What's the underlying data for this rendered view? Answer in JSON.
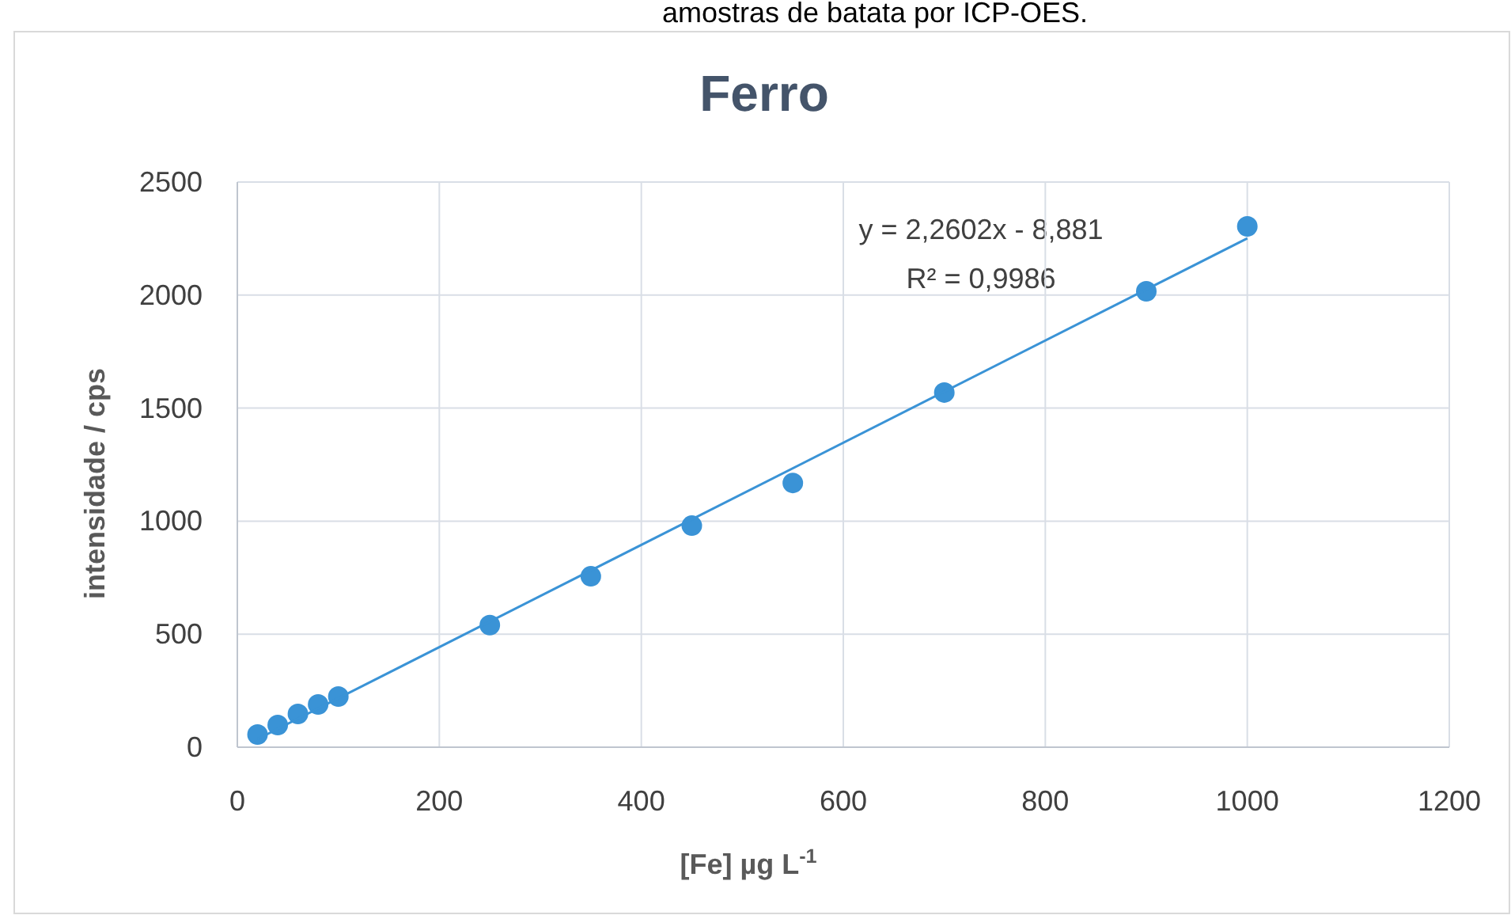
{
  "chart_data": {
    "type": "scatter",
    "title": "Ferro",
    "xlabel": "[Fe] µg L$^{-1}$",
    "ylabel": "intensidade / cps",
    "annotations": [
      "amostras de batata por ICP-OES.",
      "y = 2,2602x - 8,881",
      "R² = 0,9986"
    ],
    "xlim": [
      0,
      1200
    ],
    "xticks": [
      0,
      200,
      400,
      600,
      800,
      1000,
      1200
    ],
    "ylim": [
      0,
      2500
    ],
    "yticks": [
      0,
      500,
      1000,
      1500,
      2000,
      2500
    ],
    "grid": true,
    "marker": "circle",
    "series": [
      {
        "color": "#3a93d6",
        "x": [
          20,
          40,
          60,
          80,
          100,
          250,
          350,
          450,
          550,
          700,
          900,
          1000
        ],
        "values": [
          56,
          98,
          147,
          189,
          224,
          540,
          756,
          980,
          1169,
          1569,
          2017,
          2304
        ]
      },
      {
        "type": "line",
        "color": "#3a93d6",
        "marker": "none",
        "line_style": "solid",
        "x": [
          20,
          1000
        ],
        "values": [
          36,
          2251
        ]
      }
    ]
  }
}
